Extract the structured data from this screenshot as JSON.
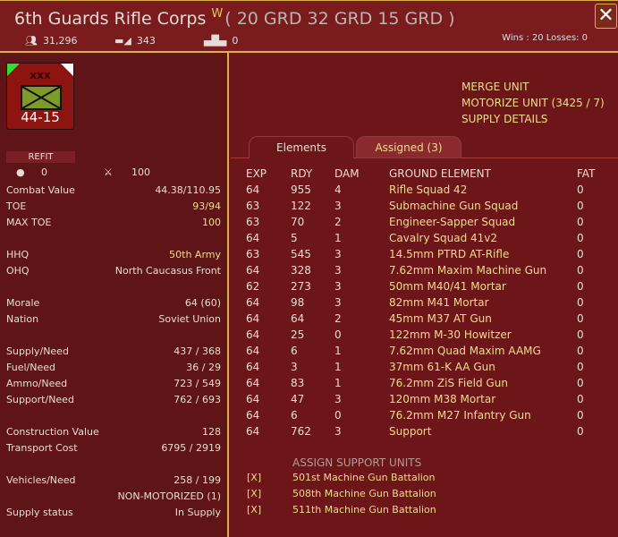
{
  "header": {
    "title": "6th Guards Rifle Corps",
    "badge": "W",
    "formations": "( 20 GRD   32 GRD   15 GRD )",
    "men": "31,296",
    "guns": "343",
    "tanks": "0",
    "wins_losses": "Wins : 20  Losses: 0",
    "close": "✕"
  },
  "counter": {
    "size": "XXX",
    "strength": "44-15"
  },
  "left": {
    "refit": "REFIT",
    "stat_a": "0",
    "stat_b": "100",
    "rows": [
      {
        "label": "Combat Value",
        "value": "44.38/110.95",
        "hl": false
      },
      {
        "label": "TOE",
        "value": "93/94",
        "hl": true
      },
      {
        "label": "MAX TOE",
        "value": "100",
        "hl": true
      },
      {
        "label": "HHQ",
        "value": "50th Army",
        "hl": true
      },
      {
        "label": "OHQ",
        "value": "North Caucasus Front",
        "hl": false
      },
      {
        "label": "Morale",
        "value": "64 (60)",
        "hl": false
      },
      {
        "label": "Nation",
        "value": "Soviet Union",
        "hl": false
      },
      {
        "label": "Supply/Need",
        "value": "437 / 368",
        "hl": false
      },
      {
        "label": "Fuel/Need",
        "value": "36 / 29",
        "hl": false
      },
      {
        "label": "Ammo/Need",
        "value": "723 / 549",
        "hl": false
      },
      {
        "label": "Support/Need",
        "value": "762 / 693",
        "hl": false
      },
      {
        "label": "Construction Value",
        "value": "128",
        "hl": false
      },
      {
        "label": "Transport Cost",
        "value": "6795 / 2919",
        "hl": false
      },
      {
        "label": "Vehicles/Need",
        "value": "258 / 199",
        "hl": false
      },
      {
        "label": "",
        "value": "NON-MOTORIZED (1)",
        "hl": false
      },
      {
        "label": "Supply status",
        "value": "In Supply",
        "hl": false
      }
    ]
  },
  "actions": [
    "MERGE UNIT",
    "MOTORIZE UNIT (3425 / 7)",
    "SUPPLY DETAILS"
  ],
  "tabs": [
    "Elements",
    "Assigned (3)"
  ],
  "table": {
    "headers": [
      "EXP",
      "RDY",
      "DAM",
      "GROUND ELEMENT",
      "FAT"
    ],
    "rows": [
      [
        "64",
        "955",
        "4",
        "Rifle Squad 42",
        "0"
      ],
      [
        "63",
        "122",
        "3",
        "Submachine Gun Squad",
        "0"
      ],
      [
        "63",
        "70",
        "2",
        "Engineer-Sapper Squad",
        "0"
      ],
      [
        "64",
        "5",
        "1",
        "Cavalry Squad 41v2",
        "0"
      ],
      [
        "63",
        "545",
        "3",
        "14.5mm PTRD AT-Rifle",
        "0"
      ],
      [
        "64",
        "328",
        "3",
        "7.62mm Maxim Machine Gun",
        "0"
      ],
      [
        "62",
        "273",
        "3",
        "50mm M40/41 Mortar",
        "0"
      ],
      [
        "64",
        "98",
        "3",
        "82mm M41 Mortar",
        "0"
      ],
      [
        "64",
        "64",
        "2",
        "45mm M37 AT Gun",
        "0"
      ],
      [
        "64",
        "25",
        "0",
        "122mm M-30 Howitzer",
        "0"
      ],
      [
        "64",
        "6",
        "1",
        "7.62mm Quad Maxim AAMG",
        "0"
      ],
      [
        "64",
        "3",
        "1",
        "37mm 61-K AA Gun",
        "0"
      ],
      [
        "64",
        "83",
        "1",
        "76.2mm ZiS Field Gun",
        "0"
      ],
      [
        "64",
        "47",
        "3",
        "120mm M38 Mortar",
        "0"
      ],
      [
        "64",
        "6",
        "0",
        "76.2mm M27 Infantry Gun",
        "0"
      ],
      [
        "64",
        "762",
        "3",
        "Support",
        "0"
      ]
    ]
  },
  "support": {
    "header": "ASSIGN SUPPORT UNITS",
    "items": [
      {
        "mark": "[X]",
        "name": "501st Machine Gun Battalion"
      },
      {
        "mark": "[X]",
        "name": "508th Machine Gun Battalion"
      },
      {
        "mark": "[X]",
        "name": "511th Machine Gun Battalion"
      }
    ]
  }
}
